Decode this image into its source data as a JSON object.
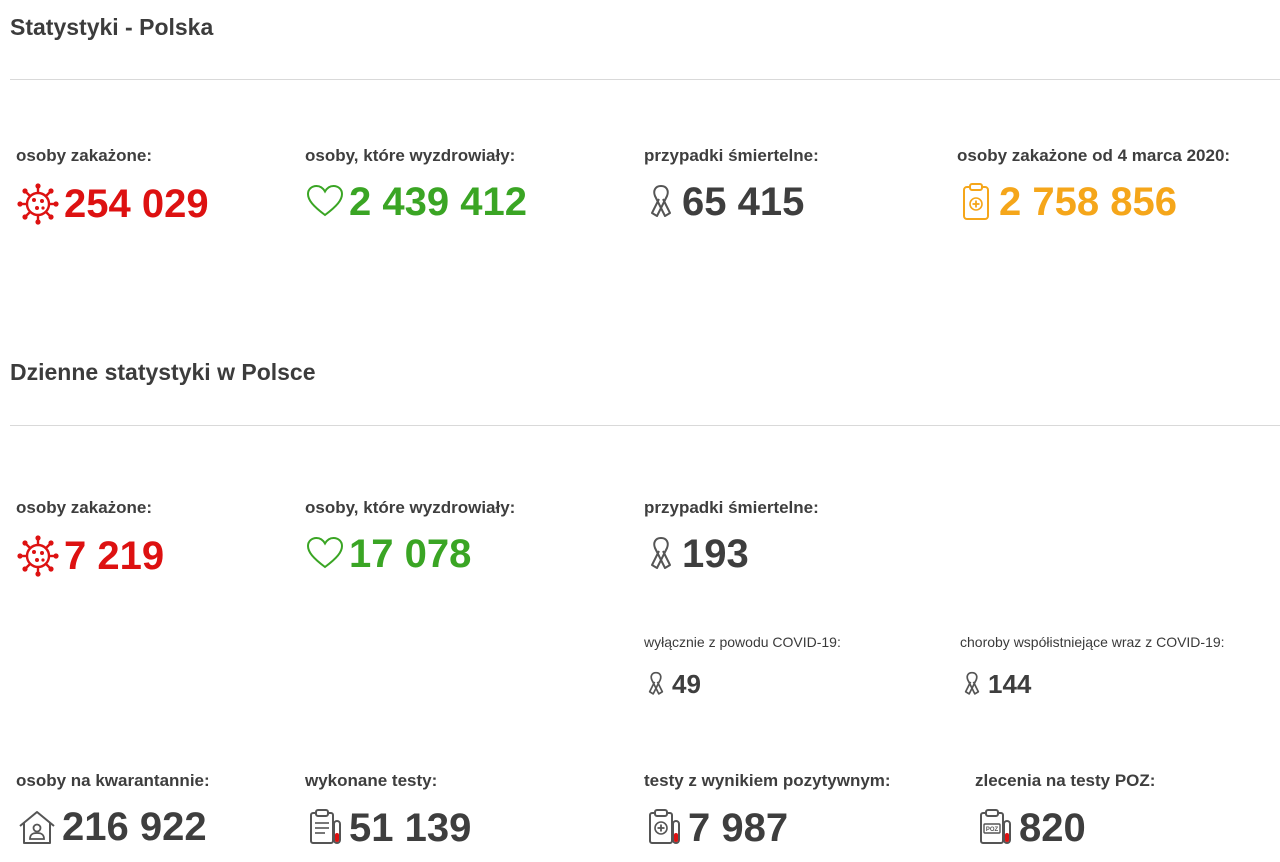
{
  "colors": {
    "infected": "#dd1111",
    "recovered": "#3aa524",
    "deaths": "#3e3e3e",
    "total": "#f5a61a"
  },
  "poland": {
    "title": "Statystyki - Polska",
    "infected": {
      "label": "osoby zakażone:",
      "value": "254 029",
      "icon": "virus-icon"
    },
    "recovered": {
      "label": "osoby, które wyzdrowiały:",
      "value": "2 439 412",
      "icon": "heart-icon"
    },
    "deaths": {
      "label": "przypadki śmiertelne:",
      "value": "65 415",
      "icon": "ribbon-icon"
    },
    "total": {
      "label": "osoby zakażone od 4 marca 2020:",
      "value": "2 758 856",
      "icon": "clipboard-icon"
    }
  },
  "daily": {
    "title": "Dzienne statystyki w Polsce",
    "infected": {
      "label": "osoby zakażone:",
      "value": "7 219",
      "icon": "virus-icon"
    },
    "recovered": {
      "label": "osoby, które wyzdrowiały:",
      "value": "17 078",
      "icon": "heart-icon"
    },
    "deaths": {
      "label": "przypadki śmiertelne:",
      "value": "193",
      "icon": "ribbon-icon"
    },
    "deaths_covid_only": {
      "label": "wyłącznie z powodu COVID-19:",
      "value": "49",
      "icon": "ribbon-icon"
    },
    "deaths_comorbid": {
      "label": "choroby współistniejące wraz z COVID-19:",
      "value": "144",
      "icon": "ribbon-icon"
    },
    "quarantine": {
      "label": "osoby na kwarantannie:",
      "value": "216 922",
      "icon": "house-icon"
    },
    "tests": {
      "label": "wykonane testy:",
      "value": "51 139",
      "icon": "test-clipboard-icon"
    },
    "positive_tests": {
      "label": "testy z wynikiem pozytywnym:",
      "value": "7 987",
      "icon": "positive-test-icon"
    },
    "poz_orders": {
      "label": "zlecenia na testy POZ:",
      "value": "820",
      "icon": "poz-test-icon",
      "icon_text": "POZ"
    }
  }
}
